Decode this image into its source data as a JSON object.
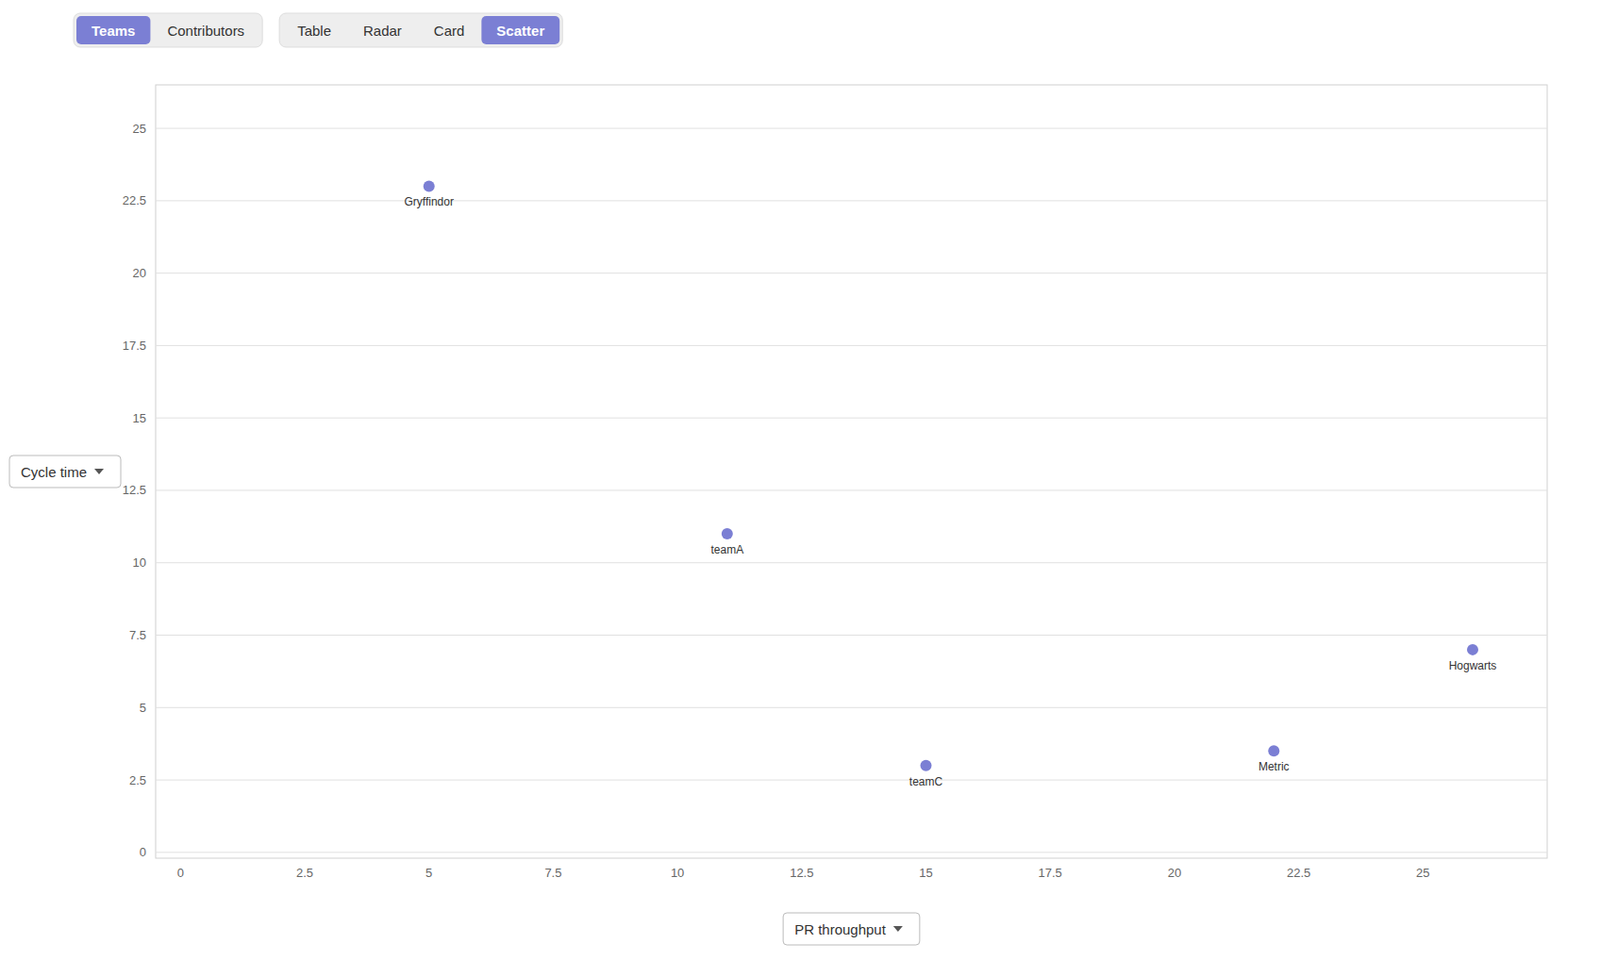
{
  "chart_data": {
    "type": "scatter",
    "xlabel": "PR throughput",
    "ylabel": "Cycle time",
    "x": [
      5.0,
      11.0,
      15.0,
      22.0,
      26.0
    ],
    "values": [
      23.0,
      11.0,
      3.0,
      3.5,
      7.0
    ],
    "labels": [
      "Gryffindor",
      "teamA",
      "teamC",
      "Metric",
      "Hogwarts"
    ],
    "color": "#7B7FD4",
    "xlim": [
      -0.5,
      27.5
    ],
    "ylim": [
      -0.2,
      26.5
    ],
    "xticks": [
      0,
      2.5,
      5,
      7.5,
      10,
      12.5,
      15,
      17.5,
      20,
      22.5,
      25
    ],
    "yticks": [
      0,
      2.5,
      5,
      7.5,
      10,
      12.5,
      15,
      17.5,
      20,
      22.5,
      25
    ],
    "grid": "y",
    "tabs": [
      [
        {
          "label": "Teams",
          "active": true
        },
        {
          "label": "Contributors",
          "active": false
        }
      ],
      [
        {
          "label": "Table",
          "active": false
        },
        {
          "label": "Radar",
          "active": false
        },
        {
          "label": "Card",
          "active": false
        },
        {
          "label": "Scatter",
          "active": true
        }
      ]
    ]
  }
}
